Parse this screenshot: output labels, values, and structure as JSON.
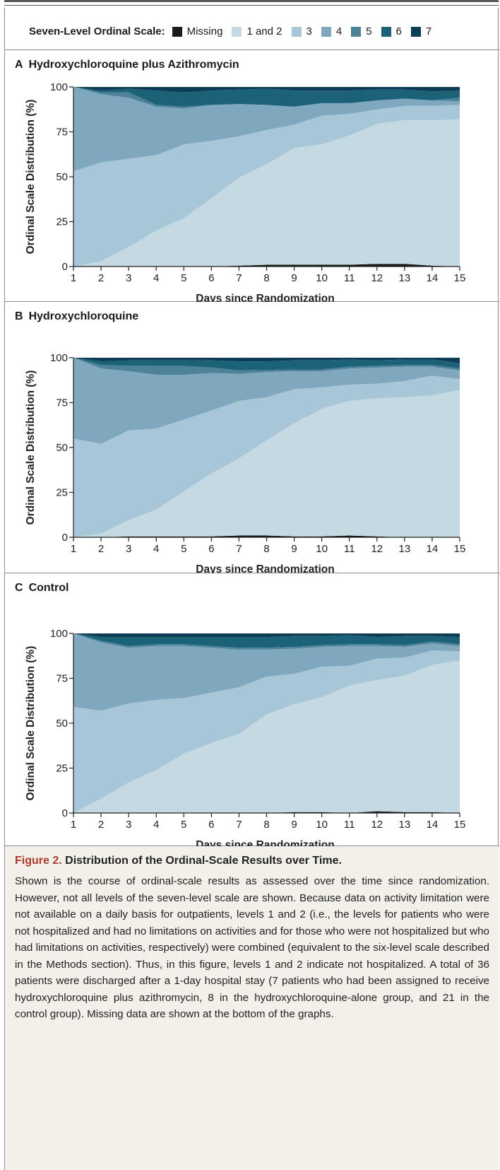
{
  "legend": {
    "title": "Seven-Level Ordinal Scale:",
    "items": [
      {
        "label": "Missing",
        "color": "#1a1a1a"
      },
      {
        "label": "1 and 2",
        "color": "#c5d9e3"
      },
      {
        "label": "3",
        "color": "#a7c6d7"
      },
      {
        "label": "4",
        "color": "#7fa8bf"
      },
      {
        "label": "5",
        "color": "#4d8299"
      },
      {
        "label": "6",
        "color": "#1b6278"
      },
      {
        "label": "7",
        "color": "#0d3d56"
      }
    ]
  },
  "panels": [
    {
      "letter": "A",
      "title": "Hydroxychloroquine plus Azithromycin"
    },
    {
      "letter": "B",
      "title": "Hydroxychloroquine"
    },
    {
      "letter": "C",
      "title": "Control"
    }
  ],
  "chart_data": [
    {
      "type": "area",
      "title": "Hydroxychloroquine plus Azithromycin",
      "xlabel": "Days since Randomization",
      "ylabel": "Ordinal Scale Distribution (%)",
      "x": [
        1,
        2,
        3,
        4,
        5,
        6,
        7,
        8,
        9,
        10,
        11,
        12,
        13,
        14,
        15
      ],
      "xlim": [
        1,
        15
      ],
      "ylim": [
        0,
        100
      ],
      "yticks": [
        0,
        25,
        50,
        75,
        100
      ],
      "stacked": true,
      "series": [
        {
          "name": "Missing",
          "values": [
            0,
            0,
            0,
            0,
            0,
            0,
            0.5,
            1,
            1,
            1,
            1,
            1.5,
            1.5,
            0.5,
            0
          ]
        },
        {
          "name": "1 and 2",
          "values": [
            0,
            3,
            11,
            20,
            27,
            38,
            49,
            56,
            65,
            67,
            72,
            78,
            80,
            81,
            82
          ]
        },
        {
          "name": "3",
          "values": [
            53,
            55,
            49,
            42,
            41,
            32,
            23,
            19,
            13,
            16,
            12,
            8,
            8,
            8,
            8
          ]
        },
        {
          "name": "4",
          "values": [
            47,
            38,
            34,
            27,
            20,
            20,
            18,
            14,
            10,
            7,
            6,
            5,
            4,
            3,
            2
          ]
        },
        {
          "name": "5",
          "values": [
            0,
            1,
            3,
            1,
            1,
            0,
            0,
            0,
            0,
            0,
            0,
            0,
            0,
            0,
            2
          ]
        },
        {
          "name": "6",
          "values": [
            0,
            1,
            2,
            8,
            8,
            8,
            8,
            9,
            9,
            7,
            7,
            6,
            5,
            5,
            4
          ]
        },
        {
          "name": "7",
          "values": [
            0,
            2,
            1,
            2,
            3,
            2,
            1.5,
            1,
            2,
            2,
            2,
            1.5,
            1.5,
            2.5,
            2
          ]
        }
      ]
    },
    {
      "type": "area",
      "title": "Hydroxychloroquine",
      "xlabel": "Days since Randomization",
      "ylabel": "Ordinal Scale Distribution (%)",
      "x": [
        1,
        2,
        3,
        4,
        5,
        6,
        7,
        8,
        9,
        10,
        11,
        12,
        13,
        14,
        15
      ],
      "xlim": [
        1,
        15
      ],
      "ylim": [
        0,
        100
      ],
      "yticks": [
        0,
        25,
        50,
        75,
        100
      ],
      "stacked": true,
      "series": [
        {
          "name": "Missing",
          "values": [
            0,
            0,
            0.5,
            0.5,
            0.5,
            0.5,
            1,
            1,
            0.5,
            0.5,
            1,
            0.5,
            0,
            0,
            0
          ]
        },
        {
          "name": "1 and 2",
          "values": [
            0,
            2,
            9,
            15,
            25,
            35,
            43,
            53,
            63,
            71,
            75,
            77,
            78,
            79,
            82
          ]
        },
        {
          "name": "3",
          "values": [
            55,
            50,
            50,
            45,
            40,
            35,
            32,
            24,
            19,
            12,
            9,
            8,
            9,
            11,
            6
          ]
        },
        {
          "name": "4",
          "values": [
            45,
            42,
            33,
            30,
            25,
            21,
            15,
            14,
            10,
            9,
            9,
            9,
            8,
            5,
            5
          ]
        },
        {
          "name": "5",
          "values": [
            0,
            2,
            3,
            5,
            5,
            3,
            2,
            1,
            1,
            1,
            1,
            1,
            1,
            1,
            1
          ]
        },
        {
          "name": "6",
          "values": [
            0,
            2,
            3,
            3,
            3,
            4,
            5,
            5,
            5,
            5,
            4,
            3,
            3,
            3,
            3
          ]
        },
        {
          "name": "7",
          "values": [
            0,
            2,
            1.5,
            1.5,
            1.5,
            1.5,
            2,
            2,
            1.5,
            1.5,
            1,
            1.5,
            1,
            1,
            3
          ]
        }
      ]
    },
    {
      "type": "area",
      "title": "Control",
      "xlabel": "Days since Randomization",
      "ylabel": "Ordinal Scale Distribution (%)",
      "x": [
        1,
        2,
        3,
        4,
        5,
        6,
        7,
        8,
        9,
        10,
        11,
        12,
        13,
        14,
        15
      ],
      "xlim": [
        1,
        15
      ],
      "ylim": [
        0,
        100
      ],
      "yticks": [
        0,
        25,
        50,
        75,
        100
      ],
      "stacked": true,
      "series": [
        {
          "name": "Missing",
          "values": [
            0,
            0,
            0,
            0,
            0,
            0,
            0,
            0,
            0.5,
            0.5,
            0,
            1,
            0.5,
            0.5,
            0
          ]
        },
        {
          "name": "1 and 2",
          "values": [
            0,
            8,
            17,
            24,
            33,
            39,
            44,
            55,
            60,
            64,
            71,
            73,
            76,
            82,
            85
          ]
        },
        {
          "name": "3",
          "values": [
            59,
            49,
            44,
            39,
            31,
            28,
            26,
            21,
            17,
            17,
            11,
            12,
            10,
            8,
            5
          ]
        },
        {
          "name": "4",
          "values": [
            41,
            38,
            31,
            30,
            29,
            25,
            21,
            15,
            14,
            11,
            11,
            7,
            6,
            4,
            3
          ]
        },
        {
          "name": "5",
          "values": [
            0,
            1,
            1,
            1,
            1,
            1,
            1,
            1,
            1,
            1,
            1,
            1,
            1,
            1,
            1
          ]
        },
        {
          "name": "6",
          "values": [
            0,
            2,
            5,
            4,
            4,
            5,
            6,
            6,
            6,
            5,
            5,
            4,
            5,
            3,
            4
          ]
        },
        {
          "name": "7",
          "values": [
            0,
            2,
            2,
            2,
            2,
            2,
            2,
            2,
            1.5,
            1.5,
            2,
            2,
            2,
            1.5,
            2
          ]
        }
      ]
    }
  ],
  "caption": {
    "fig_label": "Figure 2.",
    "title": "Distribution of the Ordinal-Scale Results over Time.",
    "text": "Shown is the course of ordinal-scale results as assessed over the time since randomization. However, not all levels of the seven-level scale are shown. Because data on activity limitation were not available on a daily basis for outpatients, levels 1 and 2 (i.e., the levels for patients who were not hospitalized and had no limitations on activities and for those who were not hospitalized but who had limitations on activities, respectively) were combined (equivalent to the six-level scale described in the Methods section). Thus, in this figure, levels 1 and 2 indicate not hospitalized. A total of 36 patients were discharged after a 1-day hospital stay (7 patients who had been assigned to receive hydroxychloroquine plus azithromycin, 8 in the hydroxychloroquine-alone group, and 21 in the control group). Missing data are shown at the bottom of the graphs."
  }
}
